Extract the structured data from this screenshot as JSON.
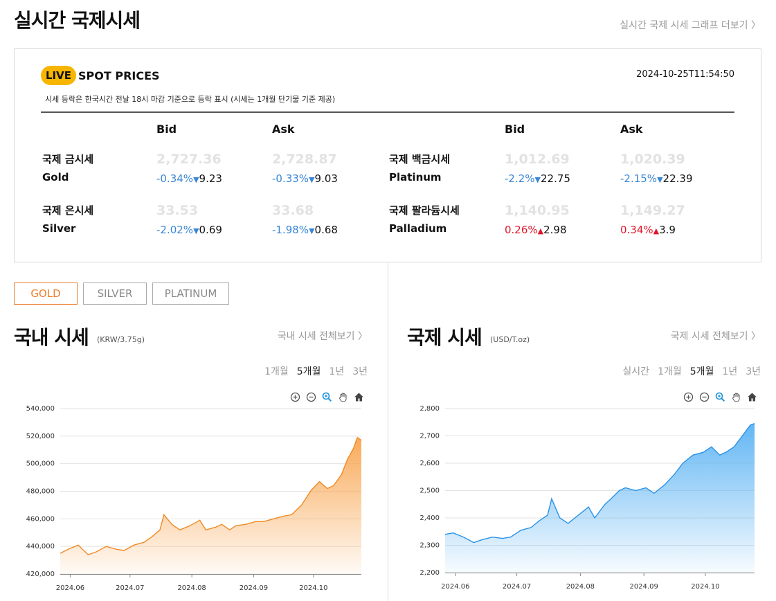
{
  "header": {
    "title": "실시간 국제시세",
    "more_link": "실시간 국제 시세 그래프 더보기 〉"
  },
  "spot": {
    "live_badge": "LIVE",
    "title": "SPOT PRICES",
    "timestamp": "2024-10-25T11:54:50",
    "note": "시세 등락은 한국시간 전날 18시 마감 기준으로 등락 표시 (시세는 1개월 단기물 기준 제공)",
    "bid_label": "Bid",
    "ask_label": "Ask",
    "metals": [
      {
        "name_ko": "국제 금시세",
        "name_en": "Gold",
        "bid": {
          "price": "2,727.36",
          "pct": "-0.34%",
          "dir": "down",
          "arrow": "▼",
          "amount": "9.23"
        },
        "ask": {
          "price": "2,728.87",
          "pct": "-0.33%",
          "dir": "down",
          "arrow": "▼",
          "amount": "9.03"
        }
      },
      {
        "name_ko": "국제 은시세",
        "name_en": "Silver",
        "bid": {
          "price": "33.53",
          "pct": "-2.02%",
          "dir": "down",
          "arrow": "▼",
          "amount": "0.69"
        },
        "ask": {
          "price": "33.68",
          "pct": "-1.98%",
          "dir": "down",
          "arrow": "▼",
          "amount": "0.68"
        }
      },
      {
        "name_ko": "국제 백금시세",
        "name_en": "Platinum",
        "bid": {
          "price": "1,012.69",
          "pct": "-2.2%",
          "dir": "down",
          "arrow": "▼",
          "amount": "22.75"
        },
        "ask": {
          "price": "1,020.39",
          "pct": "-2.15%",
          "dir": "down",
          "arrow": "▼",
          "amount": "22.39"
        }
      },
      {
        "name_ko": "국제 팔라듐시세",
        "name_en": "Palladium",
        "bid": {
          "price": "1,140.95",
          "pct": "0.26%",
          "dir": "up",
          "arrow": "▲",
          "amount": "2.98"
        },
        "ask": {
          "price": "1,149.27",
          "pct": "0.34%",
          "dir": "up",
          "arrow": "▲",
          "amount": "3.9"
        }
      }
    ]
  },
  "metal_tabs": [
    "GOLD",
    "SILVER",
    "PLATINUM"
  ],
  "domestic": {
    "title": "국내 시세",
    "unit": "(KRW/3.75g)",
    "more": "국내 시세 전체보기 〉",
    "periods": [
      "1개월",
      "5개월",
      "1년",
      "3년"
    ],
    "active_period": "5개월"
  },
  "international": {
    "title": "국제 시세",
    "unit": "(USD/T.oz)",
    "more": "국제 시세 전체보기 〉",
    "periods": [
      "실시간",
      "1개월",
      "5개월",
      "1년",
      "3년"
    ],
    "active_period": "5개월"
  },
  "colors": {
    "gold_line": "#f08a24",
    "gold_fill_top": "#f9a550",
    "usd_line": "#2a93e8",
    "usd_fill_top": "#5ab2f3",
    "down": "#3a86d6",
    "up": "#e0162b",
    "badge": "#f7b500",
    "active_tab": "#ee7d2a"
  },
  "chart_data": [
    {
      "type": "area",
      "title": "",
      "series": [
        {
          "name": "",
          "x": [
            "2024-05-27",
            "2024-05-31",
            "2024-06-05",
            "2024-06-10",
            "2024-06-14",
            "2024-06-19",
            "2024-06-24",
            "2024-06-28",
            "2024-07-03",
            "2024-07-08",
            "2024-07-12",
            "2024-07-16",
            "2024-07-18",
            "2024-07-22",
            "2024-07-26",
            "2024-07-31",
            "2024-08-05",
            "2024-08-08",
            "2024-08-13",
            "2024-08-16",
            "2024-08-20",
            "2024-08-23",
            "2024-08-28",
            "2024-09-02",
            "2024-09-06",
            "2024-09-11",
            "2024-09-16",
            "2024-09-20",
            "2024-09-25",
            "2024-09-30",
            "2024-10-04",
            "2024-10-08",
            "2024-10-11",
            "2024-10-15",
            "2024-10-18",
            "2024-10-21",
            "2024-10-23",
            "2024-10-25"
          ],
          "values": [
            435000,
            438000,
            441000,
            434000,
            436000,
            440000,
            438000,
            437000,
            441000,
            443000,
            447000,
            452000,
            463000,
            456000,
            452000,
            455000,
            459000,
            452000,
            454000,
            456000,
            452000,
            455000,
            456000,
            458000,
            458000,
            460000,
            462000,
            463000,
            470000,
            481000,
            487000,
            482000,
            484000,
            492000,
            503000,
            511000,
            519000,
            517000
          ]
        }
      ],
      "x_ticks": [
        "2024.06",
        "2024.07",
        "2024.08",
        "2024.09",
        "2024.10"
      ],
      "y_ticks": [
        "420,000",
        "440,000",
        "460,000",
        "480,000",
        "500,000",
        "520,000",
        "540,000"
      ],
      "ylim": [
        420000,
        540000
      ],
      "grid": true,
      "legend": "none"
    },
    {
      "type": "area",
      "title": "",
      "series": [
        {
          "name": "",
          "x": [
            "2024-05-27",
            "2024-05-31",
            "2024-06-05",
            "2024-06-10",
            "2024-06-14",
            "2024-06-19",
            "2024-06-24",
            "2024-06-28",
            "2024-07-03",
            "2024-07-08",
            "2024-07-12",
            "2024-07-16",
            "2024-07-18",
            "2024-07-22",
            "2024-07-26",
            "2024-07-31",
            "2024-08-05",
            "2024-08-08",
            "2024-08-13",
            "2024-08-16",
            "2024-08-20",
            "2024-08-23",
            "2024-08-28",
            "2024-09-02",
            "2024-09-06",
            "2024-09-11",
            "2024-09-16",
            "2024-09-20",
            "2024-09-25",
            "2024-09-30",
            "2024-10-04",
            "2024-10-08",
            "2024-10-11",
            "2024-10-15",
            "2024-10-18",
            "2024-10-21",
            "2024-10-23",
            "2024-10-25"
          ],
          "values": [
            2340,
            2345,
            2330,
            2310,
            2320,
            2330,
            2325,
            2330,
            2355,
            2365,
            2390,
            2410,
            2470,
            2400,
            2380,
            2410,
            2440,
            2400,
            2450,
            2470,
            2500,
            2510,
            2500,
            2510,
            2490,
            2520,
            2560,
            2600,
            2630,
            2640,
            2660,
            2630,
            2640,
            2660,
            2690,
            2720,
            2740,
            2745
          ]
        }
      ],
      "x_ticks": [
        "2024.06",
        "2024.07",
        "2024.08",
        "2024.09",
        "2024.10"
      ],
      "y_ticks": [
        "2,200",
        "2,300",
        "2,400",
        "2,500",
        "2,600",
        "2,700",
        "2,800"
      ],
      "ylim": [
        2200,
        2800
      ],
      "grid": true,
      "legend": "none"
    }
  ]
}
